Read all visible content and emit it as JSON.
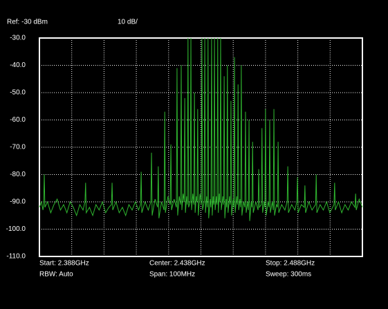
{
  "chart_data": {
    "type": "line",
    "header": [
      "Ref: -30 dBm",
      "10 dB/"
    ],
    "footer": [
      "Start: 2.388GHz",
      "RBW: Auto",
      "Center: 2.438GHz",
      "Span: 100MHz",
      "Stop: 2.488GHz",
      "Sweep: 300ms"
    ],
    "color": "#2fb52f",
    "xlim": [
      2.388,
      2.488
    ],
    "xticks": [
      2.398,
      2.408,
      2.418,
      2.428,
      2.438,
      2.448,
      2.458,
      2.468,
      2.478
    ],
    "ylim": [
      -110,
      -30
    ],
    "yticks": [
      {
        "value": -30,
        "label": "-30.0"
      },
      {
        "value": -40,
        "label": "-40.0"
      },
      {
        "value": -50,
        "label": "-50.0"
      },
      {
        "value": -60,
        "label": "-60.0"
      },
      {
        "value": -70,
        "label": "-70.0"
      },
      {
        "value": -80,
        "label": "-80.0"
      },
      {
        "value": -90,
        "label": "-90.0"
      },
      {
        "value": -100,
        "label": "-100.0"
      },
      {
        "value": -110,
        "label": "-110.0"
      }
    ],
    "grid": true,
    "x": [
      2.388,
      2.3886,
      2.3891,
      2.3893,
      2.3895,
      2.3897,
      2.3905,
      2.3915,
      2.3925,
      2.3935,
      2.3945,
      2.3955,
      2.3965,
      2.3975,
      2.3985,
      2.3995,
      2.4005,
      2.4015,
      2.4021,
      2.4023,
      2.4025,
      2.4035,
      2.4045,
      2.4055,
      2.4065,
      2.4075,
      2.4085,
      2.4095,
      2.4103,
      2.4105,
      2.4107,
      2.4117,
      2.4127,
      2.4137,
      2.4147,
      2.4157,
      2.4167,
      2.4177,
      2.4187,
      2.4193,
      2.4195,
      2.4197,
      2.4207,
      2.4217,
      2.4225,
      2.4227,
      2.4229,
      2.4238,
      2.4246,
      2.4248,
      2.425,
      2.4258,
      2.4266,
      2.4268,
      2.427,
      2.4278,
      2.4285,
      2.4287,
      2.4289,
      2.4297,
      2.4304,
      2.4306,
      2.4308,
      2.4313,
      2.4317,
      2.4319,
      2.4321,
      2.4325,
      2.4328,
      2.433,
      2.4332,
      2.4336,
      2.4338,
      2.434,
      2.4342,
      2.4347,
      2.4349,
      2.4351,
      2.4355,
      2.4358,
      2.436,
      2.4362,
      2.4366,
      2.4368,
      2.437,
      2.4372,
      2.4377,
      2.4381,
      2.4383,
      2.4385,
      2.439,
      2.4392,
      2.4394,
      2.4398,
      2.44,
      2.4402,
      2.4404,
      2.4409,
      2.4411,
      2.4413,
      2.4415,
      2.4418,
      2.442,
      2.4422,
      2.4424,
      2.4428,
      2.443,
      2.4432,
      2.4434,
      2.4437,
      2.4439,
      2.4441,
      2.4443,
      2.4448,
      2.445,
      2.4452,
      2.4454,
      2.4458,
      2.446,
      2.4462,
      2.4464,
      2.4469,
      2.4471,
      2.4473,
      2.4475,
      2.448,
      2.4482,
      2.4484,
      2.4486,
      2.4491,
      2.4493,
      2.4495,
      2.4497,
      2.4501,
      2.4503,
      2.4505,
      2.4507,
      2.4512,
      2.4516,
      2.4518,
      2.452,
      2.4525,
      2.4527,
      2.4529,
      2.4531,
      2.4536,
      2.4538,
      2.454,
      2.4542,
      2.455,
      2.4557,
      2.4559,
      2.4561,
      2.4567,
      2.4569,
      2.4571,
      2.4576,
      2.4578,
      2.458,
      2.4582,
      2.4588,
      2.4591,
      2.4593,
      2.4595,
      2.4601,
      2.4604,
      2.4606,
      2.4608,
      2.4614,
      2.4617,
      2.4619,
      2.4621,
      2.463,
      2.464,
      2.4647,
      2.4649,
      2.4651,
      2.4661,
      2.4671,
      2.4677,
      2.4679,
      2.4681,
      2.4691,
      2.47,
      2.4702,
      2.4704,
      2.4714,
      2.4724,
      2.4735,
      2.4737,
      2.4739,
      2.4749,
      2.4759,
      2.4769,
      2.4779,
      2.4792,
      2.4794,
      2.4796,
      2.4806,
      2.4816,
      2.4826,
      2.4836,
      2.4846,
      2.4857,
      2.4859,
      2.4861,
      2.487,
      2.488
    ],
    "values": [
      -92,
      -90,
      -93,
      -91,
      -80,
      -92,
      -90,
      -94,
      -91,
      -89,
      -93,
      -91,
      -94,
      -90,
      -92,
      -95,
      -91,
      -93,
      -90,
      -83,
      -94,
      -92,
      -95,
      -91,
      -93,
      -90,
      -94,
      -92,
      -91,
      -83,
      -93,
      -90,
      -94,
      -92,
      -95,
      -91,
      -93,
      -90,
      -93,
      -91,
      -79,
      -94,
      -90,
      -93,
      -90,
      -72,
      -95,
      -89,
      -92,
      -77,
      -96,
      -90,
      -93,
      -57,
      -94,
      -88,
      -91,
      -69,
      -93,
      -89,
      -92,
      -41,
      -95,
      -88,
      -91,
      -40,
      -93,
      -87,
      -90,
      -52,
      -94,
      -88,
      -91,
      -30,
      -92,
      -90,
      -30,
      -93,
      -87,
      -91,
      -50,
      -94,
      -88,
      -90,
      -56,
      -95,
      -87,
      -91,
      -30,
      -93,
      -90,
      -30,
      -94,
      -88,
      -92,
      -30,
      -96,
      -89,
      -92,
      -30,
      -95,
      -88,
      -91,
      -30,
      -93,
      -88,
      -91,
      -30,
      -94,
      -87,
      -90,
      -30,
      -93,
      -88,
      -91,
      -44,
      -96,
      -89,
      -92,
      -40,
      -94,
      -88,
      -91,
      -53,
      -95,
      -89,
      -92,
      -37,
      -94,
      -88,
      -91,
      -47,
      -93,
      -89,
      -92,
      -40,
      -95,
      -90,
      -92,
      -57,
      -94,
      -90,
      -93,
      -60,
      -97,
      -90,
      -92,
      -68,
      -94,
      -90,
      -93,
      -78,
      -92,
      -91,
      -63,
      -94,
      -90,
      -92,
      -56,
      -95,
      -90,
      -92,
      -60,
      -94,
      -90,
      -93,
      -56,
      -95,
      -91,
      -92,
      -68,
      -94,
      -91,
      -93,
      -90,
      -77,
      -94,
      -91,
      -93,
      -90,
      -81,
      -94,
      -91,
      -92,
      -84,
      -94,
      -90,
      -93,
      -91,
      -80,
      -94,
      -91,
      -93,
      -90,
      -94,
      -91,
      -83,
      -93,
      -90,
      -94,
      -91,
      -93,
      -90,
      -92,
      -87,
      -93,
      -89,
      -92
    ]
  }
}
